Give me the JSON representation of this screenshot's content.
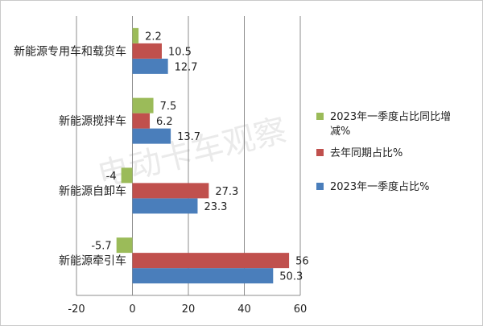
{
  "chart_data": {
    "type": "bar",
    "orientation": "horizontal",
    "categories": [
      "新能源牵引车",
      "新能源自卸车",
      "新能源搅拌车",
      "新能源专用车和载货车"
    ],
    "series": [
      {
        "name": "2023年一季度占比%",
        "color": "#4a7ebb",
        "values": [
          50.3,
          23.3,
          13.7,
          12.7
        ]
      },
      {
        "name": "去年同期占比%",
        "color": "#c0504d",
        "values": [
          56,
          27.3,
          6.2,
          10.5
        ]
      },
      {
        "name": "2023年一季度占比同比增减%",
        "color": "#9bbb59",
        "values": [
          -5.7,
          -4,
          7.5,
          2.2
        ]
      }
    ],
    "data_labels": {
      "s0": [
        "50.3",
        "23.3",
        "13.7",
        "12.7"
      ],
      "s1": [
        "56",
        "27.3",
        "6.2",
        "10.5"
      ],
      "s2": [
        "-5.7",
        "-4",
        "7.5",
        "2.2"
      ]
    },
    "xlim": [
      -20,
      60
    ],
    "xticks": [
      "-20",
      "0",
      "20",
      "40",
      "60"
    ],
    "grid": true,
    "legend_position": "right",
    "legend_items": [
      {
        "label_line1": "2023年一季度占比同比增",
        "label_line2": "减%",
        "color": "#9bbb59"
      },
      {
        "label_line1": "去年同期占比%",
        "label_line2": "",
        "color": "#c0504d"
      },
      {
        "label_line1": "2023年一季度占比%",
        "label_line2": "",
        "color": "#4a7ebb"
      }
    ]
  },
  "watermark": "电动卡车观察"
}
